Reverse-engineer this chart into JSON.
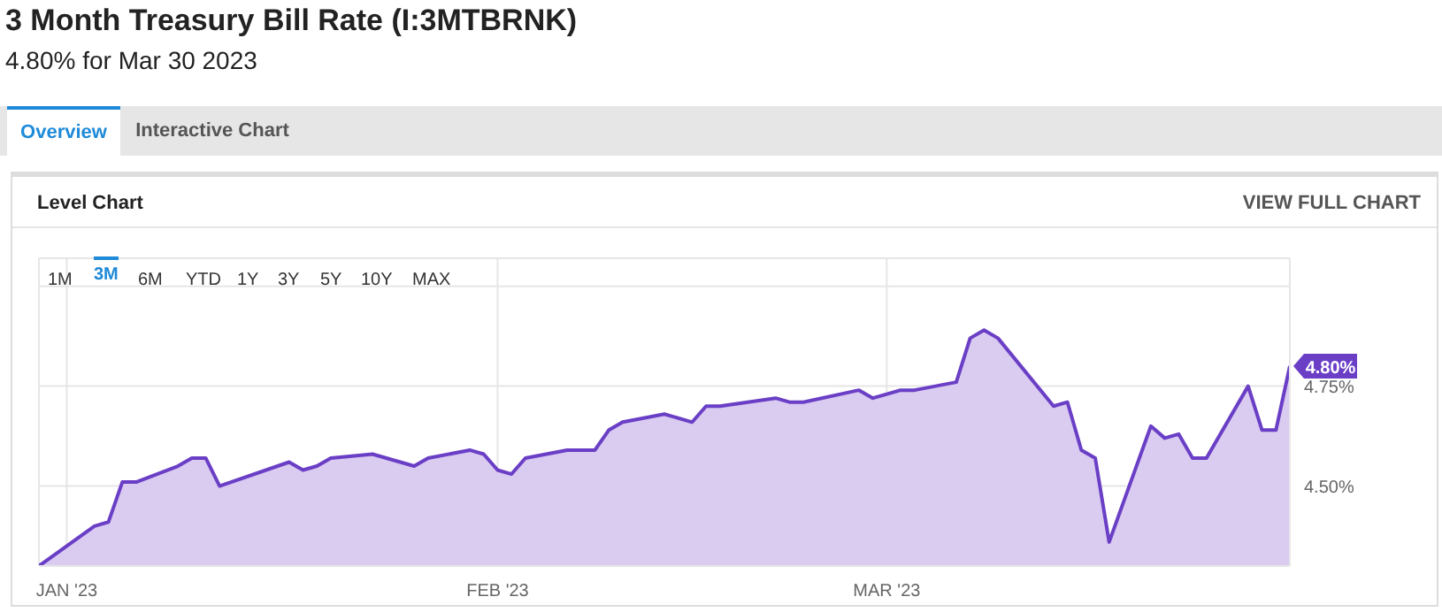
{
  "chart_data": {
    "type": "area",
    "title": "3 Month Treasury Bill Rate (I:3MTBRNK)",
    "subtitle": "4.80% for Mar 30 2023",
    "annotations": [
      "Overview",
      "Interactive Chart",
      "Level Chart",
      "VIEW FULL CHART",
      "1M",
      "3M",
      "6M",
      "YTD",
      "1Y",
      "3Y",
      "5Y",
      "10Y",
      "MAX",
      {
        "text": "4.80%",
        "x": "2023-03-30",
        "y": 4.8
      }
    ],
    "x": [
      "2022-12-30",
      "2023-01-03",
      "2023-01-04",
      "2023-01-05",
      "2023-01-06",
      "2023-01-09",
      "2023-01-10",
      "2023-01-11",
      "2023-01-12",
      "2023-01-17",
      "2023-01-18",
      "2023-01-19",
      "2023-01-20",
      "2023-01-23",
      "2023-01-26",
      "2023-01-27",
      "2023-01-30",
      "2023-01-31",
      "2023-02-01",
      "2023-02-02",
      "2023-02-03",
      "2023-02-06",
      "2023-02-08",
      "2023-02-09",
      "2023-02-10",
      "2023-02-13",
      "2023-02-15",
      "2023-02-16",
      "2023-02-17",
      "2023-02-21",
      "2023-02-22",
      "2023-02-23",
      "2023-02-27",
      "2023-02-28",
      "2023-03-02",
      "2023-03-03",
      "2023-03-06",
      "2023-03-07",
      "2023-03-08",
      "2023-03-09",
      "2023-03-13",
      "2023-03-14",
      "2023-03-15",
      "2023-03-16",
      "2023-03-17",
      "2023-03-20",
      "2023-03-21",
      "2023-03-22",
      "2023-03-23",
      "2023-03-24",
      "2023-03-27",
      "2023-03-28",
      "2023-03-29",
      "2023-03-30"
    ],
    "series": [
      {
        "color": "#6a3fc6",
        "values": [
          4.3,
          4.4,
          4.41,
          4.51,
          4.51,
          4.55,
          4.57,
          4.57,
          4.5,
          4.56,
          4.54,
          4.55,
          4.57,
          4.58,
          4.55,
          4.57,
          4.59,
          4.58,
          4.54,
          4.53,
          4.57,
          4.59,
          4.59,
          4.64,
          4.66,
          4.68,
          4.66,
          4.7,
          4.7,
          4.72,
          4.71,
          4.71,
          4.74,
          4.72,
          4.74,
          4.74,
          4.76,
          4.87,
          4.89,
          4.87,
          4.7,
          4.71,
          4.59,
          4.57,
          4.36,
          4.65,
          4.62,
          4.63,
          4.57,
          4.57,
          4.75,
          4.64,
          4.64,
          4.8
        ]
      }
    ],
    "xlim": [
      "2022-12-30",
      "2023-03-30"
    ],
    "xticks": [
      {
        "value": "2023-01-01",
        "label": "JAN '23"
      },
      {
        "value": "2023-02-01",
        "label": "FEB '23"
      },
      {
        "value": "2023-03-01",
        "label": "MAR '23"
      }
    ],
    "ylim": [
      4.3,
      5.07
    ],
    "yticks": [
      {
        "value": 4.5,
        "label": "4.50%"
      },
      {
        "value": 4.75,
        "label": "4.75%"
      },
      {
        "value": 5.0,
        "label": null
      }
    ],
    "grid": true
  }
}
